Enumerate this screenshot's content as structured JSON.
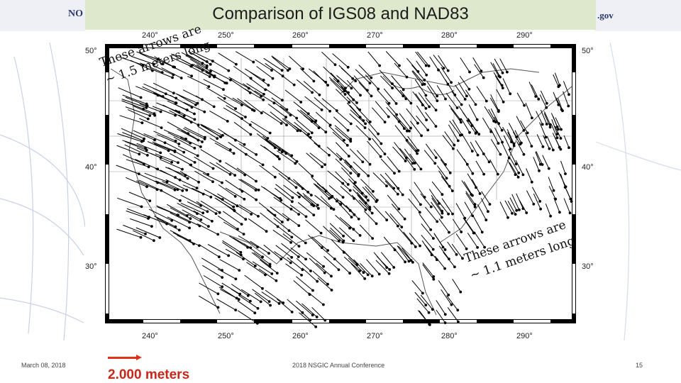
{
  "slide": {
    "title": "Comparison of IGS08 and NAD83",
    "header_left_text": "NO",
    "header_right_text": ".gov",
    "footer": {
      "date": "March 08, 2018",
      "conference": "2018 NSGIC Annual Conference",
      "page_number": "15"
    },
    "scale": {
      "label": "2.000 meters",
      "color": "#e0301e"
    }
  },
  "map": {
    "longitude_ticks": [
      "240°",
      "250°",
      "260°",
      "270°",
      "280°",
      "290°"
    ],
    "latitude_ticks": [
      "50°",
      "40°",
      "30°"
    ],
    "vector_color": "#000000",
    "annotation_west": {
      "line1": "These arrows are",
      "line2": "~ 1.5 meters long"
    },
    "annotation_east": {
      "line1": "These arrows are",
      "line2": "~ 1.1 meters long"
    }
  },
  "colors": {
    "title_band": "#dde8cc",
    "header_band": "#eef0f6",
    "header_text": "#2b3a6b"
  }
}
